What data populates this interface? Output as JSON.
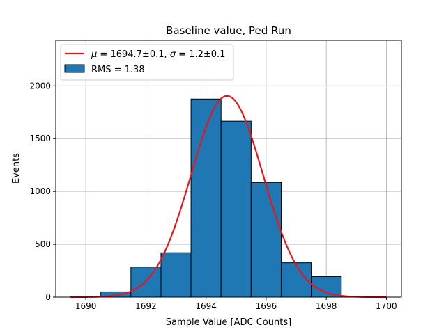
{
  "chart_data": {
    "type": "bar",
    "title": "Baseline value, Ped Run",
    "xlabel": "Sample Value [ADC Counts]",
    "ylabel": "Events",
    "xlim": [
      1689,
      1700.5
    ],
    "ylim": [
      0,
      2430
    ],
    "x_ticks": [
      1690,
      1692,
      1694,
      1696,
      1698,
      1700
    ],
    "y_ticks": [
      0,
      500,
      1000,
      1500,
      2000
    ],
    "grid": true,
    "legend_position": "upper-left",
    "histogram": {
      "name": "RMS = 1.38",
      "color": "#1f77b4",
      "edge_color": "#000000",
      "bin_edges": [
        1689.5,
        1690.5,
        1691.5,
        1692.5,
        1693.5,
        1694.5,
        1695.5,
        1696.5,
        1697.5,
        1698.5,
        1699.5
      ],
      "counts": [
        5,
        50,
        285,
        420,
        1875,
        1665,
        1085,
        325,
        195,
        10
      ]
    },
    "fit": {
      "name": "$\\mu = 1694.7 \\pm 0.1$, $\\sigma = 1.2 \\pm 0.1$",
      "label_mu": "μ",
      "label_mu_value": " = 1694.7±0.1, ",
      "label_sigma": "σ",
      "label_sigma_value": " = 1.2±0.1",
      "color": "#e6161c",
      "type": "gaussian",
      "mu": 1694.7,
      "sigma": 1.2,
      "amplitude": 1905,
      "x_range": [
        1689.5,
        1700
      ]
    }
  }
}
